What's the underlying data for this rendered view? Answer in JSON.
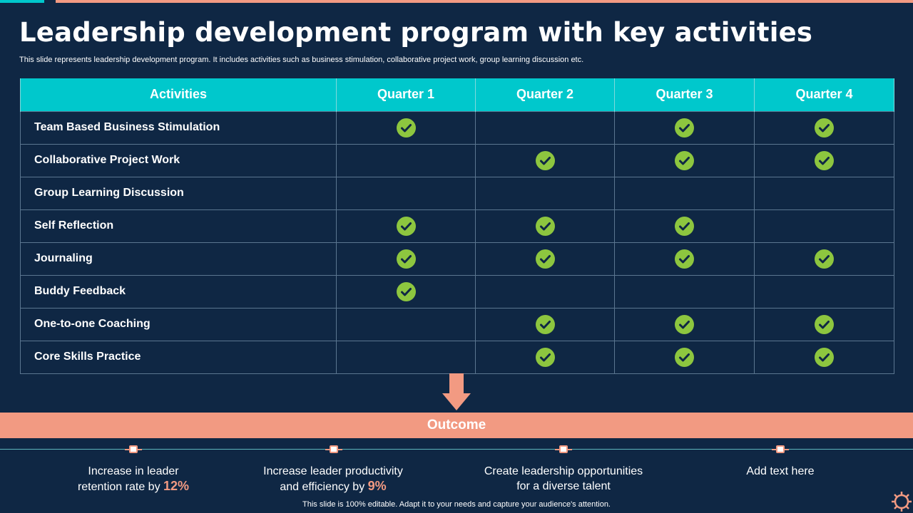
{
  "slide": {
    "title": "Leadership development program with key activities",
    "subtitle": "This slide represents leadership development program. It includes activities such as business stimulation, collaborative project work, group learning discussion etc.",
    "footer": "This slide is 100% editable. Adapt it to your needs and capture your audience's attention."
  },
  "colors": {
    "background": "#0f2744",
    "accent_teal": "#00c8cc",
    "accent_salmon": "#f29a82",
    "check_green": "#8dc63f"
  },
  "table": {
    "headers": [
      "Activities",
      "Quarter 1",
      "Quarter 2",
      "Quarter 3",
      "Quarter 4"
    ],
    "rows": [
      {
        "activity": "Team Based Business Stimulation",
        "quarters": [
          true,
          false,
          true,
          true
        ]
      },
      {
        "activity": "Collaborative Project Work",
        "quarters": [
          false,
          true,
          true,
          true
        ]
      },
      {
        "activity": "Group Learning Discussion",
        "quarters": [
          false,
          false,
          false,
          false
        ]
      },
      {
        "activity": "Self Reflection",
        "quarters": [
          true,
          true,
          true,
          false
        ]
      },
      {
        "activity": "Journaling",
        "quarters": [
          true,
          true,
          true,
          true
        ]
      },
      {
        "activity": "Buddy Feedback",
        "quarters": [
          true,
          false,
          false,
          false
        ]
      },
      {
        "activity": "One-to-one Coaching",
        "quarters": [
          false,
          true,
          true,
          true
        ]
      },
      {
        "activity": "Core Skills Practice",
        "quarters": [
          false,
          true,
          true,
          true
        ]
      }
    ],
    "check_icon": "check-circle-icon"
  },
  "outcome": {
    "label": "Outcome",
    "items": [
      {
        "line1": "Increase  in leader",
        "line2": "retention rate by ",
        "highlight": "12%"
      },
      {
        "line1": "Increase  leader productivity",
        "line2": "and efficiency by ",
        "highlight": "9%"
      },
      {
        "line1": "Create leadership opportunities",
        "line2": "for a diverse talent",
        "highlight": ""
      },
      {
        "line1": "Add text here",
        "line2": "",
        "highlight": ""
      }
    ]
  }
}
